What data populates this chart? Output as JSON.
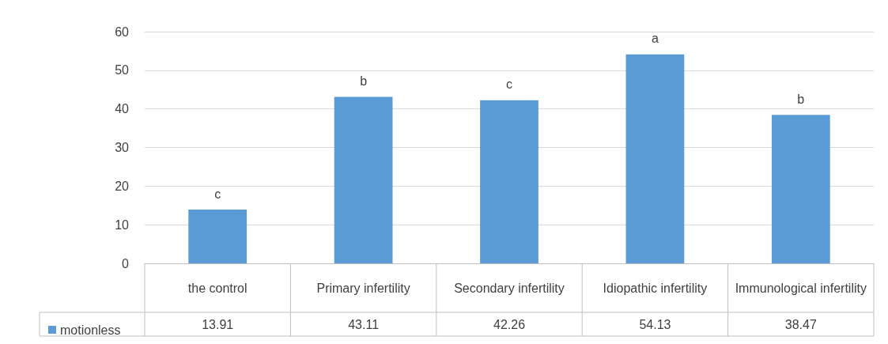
{
  "chart_data": {
    "type": "bar",
    "categories": [
      "the control",
      "Primary infertility",
      "Secondary infertility",
      "Idiopathic infertility",
      "Immunological infertility"
    ],
    "series": [
      {
        "name": "motionless",
        "color": "#5b9bd5",
        "values": [
          13.91,
          43.11,
          42.26,
          54.13,
          38.47
        ]
      }
    ],
    "ylim": [
      0,
      60
    ],
    "yticks": [
      0,
      10,
      20,
      30,
      40,
      50,
      60
    ],
    "grid": "y",
    "legend": "bottom left",
    "data_labels": true,
    "annotations": [
      {
        "text": "c",
        "x": "the control",
        "y": 13.91
      },
      {
        "text": "b",
        "x": "Primary infertility",
        "y": 43.11
      },
      {
        "text": "c",
        "x": "Secondary infertility",
        "y": 42.26
      },
      {
        "text": "a",
        "x": "Idiopathic infertility",
        "y": 54.13
      },
      {
        "text": "b",
        "x": "Immunological infertility",
        "y": 38.47
      }
    ]
  }
}
